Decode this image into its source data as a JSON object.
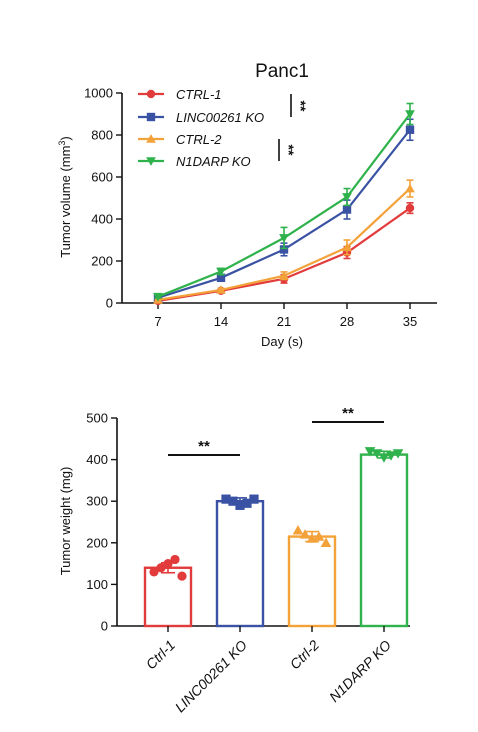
{
  "chart_data": [
    {
      "type": "line",
      "title": "Panc1",
      "xlabel": "Day (s)",
      "ylabel": "Tumor volume (mm³)",
      "ylabel_main": "Tumor volume (mm",
      "ylabel_sup": "3",
      "ylabel_close": ")",
      "x": [
        7,
        14,
        21,
        28,
        35
      ],
      "xlim": [
        3,
        38
      ],
      "ylim": [
        0,
        1000
      ],
      "xticks": [
        "7",
        "14",
        "21",
        "28",
        "35"
      ],
      "yticks": [
        "0",
        "200",
        "400",
        "600",
        "800",
        "1000"
      ],
      "legend_position": "top-left",
      "significance": [
        "**",
        "**"
      ],
      "series": [
        {
          "name": "CTRL-1",
          "color": "#e23b3b",
          "marker": "circle",
          "values": [
            10,
            58,
            115,
            240,
            452
          ],
          "errors": [
            5,
            8,
            20,
            28,
            25
          ]
        },
        {
          "name": "LINC00261 KO",
          "color": "#3a52a3",
          "marker": "square",
          "values": [
            25,
            120,
            255,
            445,
            825
          ],
          "errors": [
            6,
            15,
            30,
            45,
            50
          ]
        },
        {
          "name": "CTRL-2",
          "color": "#f3a23a",
          "marker": "triangle-up",
          "values": [
            15,
            62,
            130,
            265,
            545
          ],
          "errors": [
            5,
            8,
            18,
            35,
            40
          ]
        },
        {
          "name": "N1DARP KO",
          "color": "#2fb24b",
          "marker": "triangle-down",
          "values": [
            30,
            150,
            310,
            505,
            900
          ],
          "errors": [
            6,
            15,
            50,
            40,
            50
          ]
        }
      ]
    },
    {
      "type": "bar",
      "title": "",
      "xlabel": "",
      "ylabel": "Tumor weight (mg)",
      "ylim": [
        0,
        500
      ],
      "yticks": [
        "0",
        "100",
        "200",
        "300",
        "400",
        "500"
      ],
      "categories": [
        "Ctrl-1",
        "LINC00261 KO",
        "Ctrl-2",
        "N1DARP KO"
      ],
      "values": [
        140,
        300,
        215,
        412
      ],
      "errors": [
        12,
        8,
        12,
        8
      ],
      "colors": [
        "#e23b3b",
        "#3a52a3",
        "#f3a23a",
        "#2fb24b"
      ],
      "markers": [
        "circle",
        "square",
        "triangle-up",
        "triangle-down"
      ],
      "points": [
        [
          130,
          140,
          150,
          160,
          120
        ],
        [
          305,
          300,
          290,
          295,
          305
        ],
        [
          230,
          220,
          210,
          215,
          200
        ],
        [
          420,
          415,
          405,
          410,
          415
        ]
      ],
      "significance": [
        "**",
        "**"
      ]
    }
  ]
}
